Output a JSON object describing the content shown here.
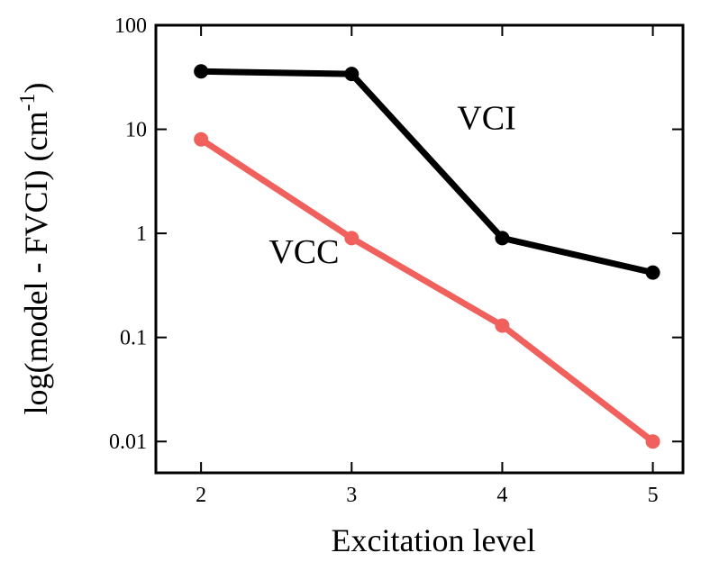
{
  "chart_data": {
    "type": "line",
    "xlabel": "Excitation level",
    "ylabel_main": "log(model - FVCI) (cm",
    "ylabel_sup": "-1",
    "ylabel_close": ")",
    "xlim": [
      1.7,
      5.2
    ],
    "ylim": [
      0.005,
      100
    ],
    "yscale": "log",
    "x_ticks": [
      2,
      3,
      4,
      5
    ],
    "x_tick_labels": [
      "2",
      "3",
      "4",
      "5"
    ],
    "y_ticks": [
      0.01,
      0.1,
      1,
      10,
      100
    ],
    "y_tick_labels": [
      "0.01",
      "0.1",
      "1",
      "10",
      "100"
    ],
    "grid": false,
    "legend": "none",
    "series": [
      {
        "name": "VCI",
        "label_anchor": [
          3.7,
          10
        ],
        "color": "#000000",
        "x": [
          2,
          3,
          4,
          5
        ],
        "values": [
          36,
          34,
          0.9,
          0.42
        ]
      },
      {
        "name": "VCC",
        "label_anchor": [
          2.45,
          0.52
        ],
        "color": "#f0605d",
        "x": [
          2,
          3,
          4,
          5
        ],
        "values": [
          8,
          0.9,
          0.13,
          0.01
        ]
      }
    ]
  }
}
